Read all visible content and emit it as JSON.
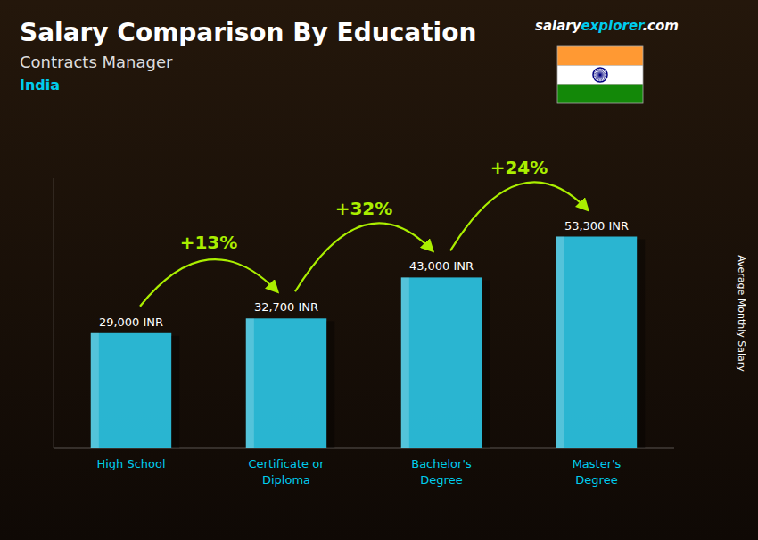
{
  "chart_data": {
    "type": "bar",
    "title": "Salary Comparison By Education",
    "subtitle": "Contracts Manager",
    "country": "India",
    "website_parts": [
      "salary",
      "explorer",
      ".com"
    ],
    "ylabel": "Average Monthly Salary",
    "categories": [
      "High School",
      "Certificate or\nDiploma",
      "Bachelor's\nDegree",
      "Master's\nDegree"
    ],
    "values": [
      29000,
      32700,
      43000,
      53300
    ],
    "value_labels": [
      "29,000 INR",
      "32,700 INR",
      "43,000 INR",
      "53,300 INR"
    ],
    "annotations": [
      "+13%",
      "+32%",
      "+24%"
    ],
    "color": "#2cc8e8",
    "ylim": [
      0,
      68000
    ],
    "data_labels": true,
    "tick_labels": "x",
    "grid": false
  }
}
